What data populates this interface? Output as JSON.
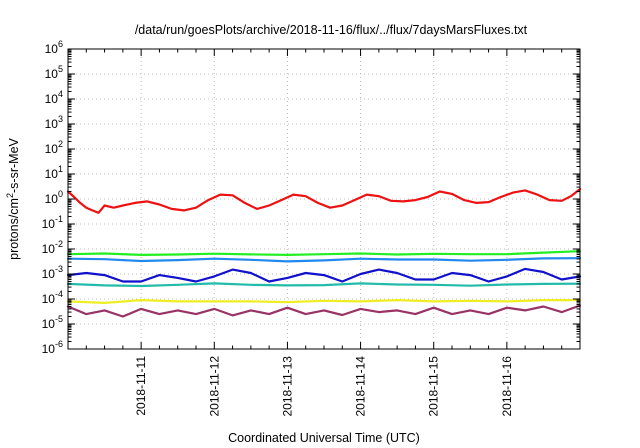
{
  "chart_data": {
    "type": "line",
    "title": "/data/run/goesPlots/archive/2018-11-16/flux/../flux/7daysMarsFluxes.txt",
    "xlabel": "Coordinated Universal Time (UTC)",
    "ylabel": {
      "base": "protons/cm",
      "sup": "2",
      "rest": "-s-sr-MeV"
    },
    "y_scale": "log",
    "ylim": [
      1e-06,
      1000000.0
    ],
    "y_ticks": [
      {
        "value": 1e-06,
        "base": "10",
        "exp": "-6"
      },
      {
        "value": 1e-05,
        "base": "10",
        "exp": "-5"
      },
      {
        "value": 0.0001,
        "base": "10",
        "exp": "-4"
      },
      {
        "value": 0.001,
        "base": "10",
        "exp": "-3"
      },
      {
        "value": 0.01,
        "base": "10",
        "exp": "-2"
      },
      {
        "value": 0.1,
        "base": "10",
        "exp": "-1"
      },
      {
        "value": 1,
        "base": "10",
        "exp": "0"
      },
      {
        "value": 10,
        "base": "10",
        "exp": "1"
      },
      {
        "value": 100,
        "base": "10",
        "exp": "2"
      },
      {
        "value": 1000,
        "base": "10",
        "exp": "3"
      },
      {
        "value": 10000,
        "base": "10",
        "exp": "4"
      },
      {
        "value": 100000,
        "base": "10",
        "exp": "5"
      },
      {
        "value": 1000000,
        "base": "10",
        "exp": "6"
      }
    ],
    "xlim": [
      "2018-11-10T00:00",
      "2018-11-17T00:00"
    ],
    "x_ticks": [
      "2018-11-11",
      "2018-11-12",
      "2018-11-13",
      "2018-11-14",
      "2018-11-15",
      "2018-11-16"
    ],
    "grid": true,
    "legend": "none",
    "series": [
      {
        "color": "#ee1111",
        "x": [
          "2018-11-10T00:00",
          "2018-11-10T02:00",
          "2018-11-10T04:00",
          "2018-11-10T06:00",
          "2018-11-10T08:00",
          "2018-11-10T10:00",
          "2018-11-10T12:00",
          "2018-11-10T15:00",
          "2018-11-10T18:00",
          "2018-11-10T22:00",
          "2018-11-11T02:00",
          "2018-11-11T06:00",
          "2018-11-11T10:00",
          "2018-11-11T14:00",
          "2018-11-11T18:00",
          "2018-11-11T22:00",
          "2018-11-12T02:00",
          "2018-11-12T06:00",
          "2018-11-12T10:00",
          "2018-11-12T14:00",
          "2018-11-12T18:00",
          "2018-11-12T22:00",
          "2018-11-13T02:00",
          "2018-11-13T06:00",
          "2018-11-13T10:00",
          "2018-11-13T14:00",
          "2018-11-13T18:00",
          "2018-11-13T22:00",
          "2018-11-14T02:00",
          "2018-11-14T06:00",
          "2018-11-14T10:00",
          "2018-11-14T14:00",
          "2018-11-14T18:00",
          "2018-11-14T22:00",
          "2018-11-15T02:00",
          "2018-11-15T06:00",
          "2018-11-15T10:00",
          "2018-11-15T14:00",
          "2018-11-15T18:00",
          "2018-11-15T22:00",
          "2018-11-16T02:00",
          "2018-11-16T06:00",
          "2018-11-16T10:00",
          "2018-11-16T14:00",
          "2018-11-16T18:00",
          "2018-11-16T21:00",
          "2018-11-17T00:00"
        ],
        "y": [
          2.0,
          1.2,
          0.7,
          0.45,
          0.35,
          0.28,
          0.55,
          0.45,
          0.55,
          0.7,
          0.8,
          0.6,
          0.4,
          0.35,
          0.45,
          0.9,
          1.5,
          1.4,
          0.7,
          0.4,
          0.55,
          0.9,
          1.5,
          1.3,
          0.7,
          0.45,
          0.55,
          0.9,
          1.5,
          1.3,
          0.85,
          0.8,
          0.9,
          1.2,
          2.0,
          1.6,
          0.9,
          0.7,
          0.75,
          1.2,
          1.8,
          2.2,
          1.5,
          0.9,
          0.85,
          1.3,
          2.5
        ]
      },
      {
        "color": "#22ee22",
        "x": [
          "2018-11-10T00:00",
          "2018-11-10T12:00",
          "2018-11-11T00:00",
          "2018-11-11T12:00",
          "2018-11-12T00:00",
          "2018-11-12T12:00",
          "2018-11-13T00:00",
          "2018-11-13T12:00",
          "2018-11-14T00:00",
          "2018-11-14T12:00",
          "2018-11-15T00:00",
          "2018-11-15T12:00",
          "2018-11-16T00:00",
          "2018-11-16T12:00",
          "2018-11-17T00:00"
        ],
        "y": [
          0.0062,
          0.0066,
          0.0058,
          0.006,
          0.0065,
          0.0061,
          0.0058,
          0.0062,
          0.0066,
          0.006,
          0.0064,
          0.0062,
          0.0062,
          0.0072,
          0.0082
        ]
      },
      {
        "color": "#2288ee",
        "x": [
          "2018-11-10T00:00",
          "2018-11-10T12:00",
          "2018-11-11T00:00",
          "2018-11-11T12:00",
          "2018-11-12T00:00",
          "2018-11-12T12:00",
          "2018-11-13T00:00",
          "2018-11-13T12:00",
          "2018-11-14T00:00",
          "2018-11-14T12:00",
          "2018-11-15T00:00",
          "2018-11-15T12:00",
          "2018-11-16T00:00",
          "2018-11-16T12:00",
          "2018-11-17T00:00"
        ],
        "y": [
          0.0041,
          0.0039,
          0.0033,
          0.0036,
          0.0041,
          0.0037,
          0.0032,
          0.0035,
          0.0041,
          0.0038,
          0.0038,
          0.0034,
          0.0037,
          0.0042,
          0.0043
        ]
      },
      {
        "color": "#1111cc",
        "x": [
          "2018-11-10T00:00",
          "2018-11-10T06:00",
          "2018-11-10T12:00",
          "2018-11-10T18:00",
          "2018-11-11T00:00",
          "2018-11-11T06:00",
          "2018-11-11T12:00",
          "2018-11-11T18:00",
          "2018-11-12T00:00",
          "2018-11-12T06:00",
          "2018-11-12T12:00",
          "2018-11-12T18:00",
          "2018-11-13T00:00",
          "2018-11-13T06:00",
          "2018-11-13T12:00",
          "2018-11-13T18:00",
          "2018-11-14T00:00",
          "2018-11-14T06:00",
          "2018-11-14T12:00",
          "2018-11-14T18:00",
          "2018-11-15T00:00",
          "2018-11-15T06:00",
          "2018-11-15T12:00",
          "2018-11-15T18:00",
          "2018-11-16T00:00",
          "2018-11-16T06:00",
          "2018-11-16T12:00",
          "2018-11-16T18:00",
          "2018-11-17T00:00"
        ],
        "y": [
          0.0009,
          0.0011,
          0.0009,
          0.0005,
          0.0005,
          0.0009,
          0.0007,
          0.0005,
          0.0008,
          0.0015,
          0.0011,
          0.0005,
          0.0007,
          0.0011,
          0.0009,
          0.0005,
          0.001,
          0.0015,
          0.0011,
          0.0006,
          0.0006,
          0.0011,
          0.0009,
          0.0005,
          0.0008,
          0.0016,
          0.0012,
          0.0006,
          0.0008
        ]
      },
      {
        "color": "#22bbaa",
        "x": [
          "2018-11-10T00:00",
          "2018-11-10T12:00",
          "2018-11-11T00:00",
          "2018-11-11T12:00",
          "2018-11-12T00:00",
          "2018-11-12T12:00",
          "2018-11-13T00:00",
          "2018-11-13T12:00",
          "2018-11-14T00:00",
          "2018-11-14T12:00",
          "2018-11-15T00:00",
          "2018-11-15T12:00",
          "2018-11-16T00:00",
          "2018-11-16T12:00",
          "2018-11-17T00:00"
        ],
        "y": [
          0.0004,
          0.00035,
          0.00033,
          0.00037,
          0.00042,
          0.00037,
          0.00035,
          0.00036,
          0.00042,
          0.00038,
          0.00037,
          0.00034,
          0.00038,
          0.0004,
          0.00041
        ]
      },
      {
        "color": "#eeee22",
        "x": [
          "2018-11-10T00:00",
          "2018-11-10T12:00",
          "2018-11-11T00:00",
          "2018-11-11T12:00",
          "2018-11-12T00:00",
          "2018-11-12T12:00",
          "2018-11-13T00:00",
          "2018-11-13T12:00",
          "2018-11-14T00:00",
          "2018-11-14T12:00",
          "2018-11-15T00:00",
          "2018-11-15T12:00",
          "2018-11-16T00:00",
          "2018-11-16T12:00",
          "2018-11-17T00:00"
        ],
        "y": [
          8e-05,
          7e-05,
          9e-05,
          8e-05,
          8e-05,
          8e-05,
          7.5e-05,
          8.5e-05,
          8e-05,
          9e-05,
          8e-05,
          8.5e-05,
          8e-05,
          9e-05,
          9e-05
        ]
      },
      {
        "color": "#993366",
        "x": [
          "2018-11-10T00:00",
          "2018-11-10T06:00",
          "2018-11-10T12:00",
          "2018-11-10T18:00",
          "2018-11-11T00:00",
          "2018-11-11T06:00",
          "2018-11-11T12:00",
          "2018-11-11T18:00",
          "2018-11-12T00:00",
          "2018-11-12T06:00",
          "2018-11-12T12:00",
          "2018-11-12T18:00",
          "2018-11-13T00:00",
          "2018-11-13T06:00",
          "2018-11-13T12:00",
          "2018-11-13T18:00",
          "2018-11-14T00:00",
          "2018-11-14T06:00",
          "2018-11-14T12:00",
          "2018-11-14T18:00",
          "2018-11-15T00:00",
          "2018-11-15T06:00",
          "2018-11-15T12:00",
          "2018-11-15T18:00",
          "2018-11-16T00:00",
          "2018-11-16T06:00",
          "2018-11-16T12:00",
          "2018-11-16T18:00",
          "2018-11-17T00:00"
        ],
        "y": [
          5e-05,
          2.5e-05,
          3.5e-05,
          2e-05,
          4e-05,
          2.5e-05,
          3.5e-05,
          2.5e-05,
          4e-05,
          2.2e-05,
          3.5e-05,
          2.5e-05,
          4.5e-05,
          2.5e-05,
          3.5e-05,
          2.3e-05,
          4e-05,
          3e-05,
          3.5e-05,
          2.5e-05,
          4.5e-05,
          2.5e-05,
          3.5e-05,
          2.5e-05,
          4.5e-05,
          3.5e-05,
          5e-05,
          3e-05,
          5.5e-05
        ]
      }
    ]
  }
}
